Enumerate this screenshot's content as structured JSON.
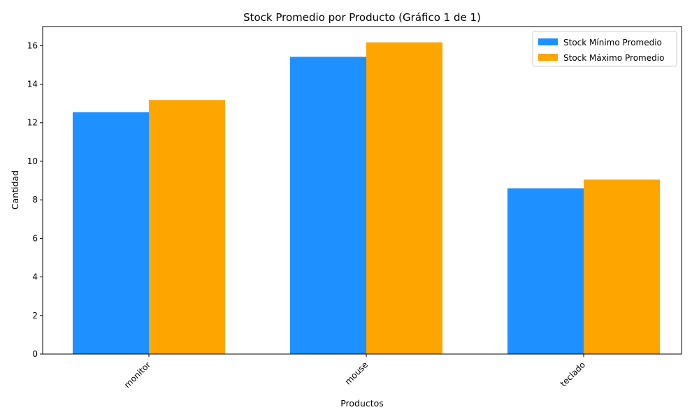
{
  "chart_data": {
    "type": "bar",
    "title": "Stock Promedio por Producto (Gráfico 1 de 1)",
    "xlabel": "Productos",
    "ylabel": "Cantidad",
    "categories": [
      "monitor",
      "mouse",
      "teclado"
    ],
    "series": [
      {
        "name": "Stock Mínimo Promedio",
        "values": [
          12.55,
          15.42,
          8.6
        ],
        "color": "#1e90ff"
      },
      {
        "name": "Stock Máximo Promedio",
        "values": [
          13.18,
          16.17,
          9.05
        ],
        "color": "#ffa500"
      }
    ],
    "ylim": [
      0,
      16.99
    ],
    "yticks": [
      0,
      2,
      4,
      6,
      8,
      10,
      12,
      14,
      16
    ],
    "legend": "top-right",
    "grid": false
  }
}
